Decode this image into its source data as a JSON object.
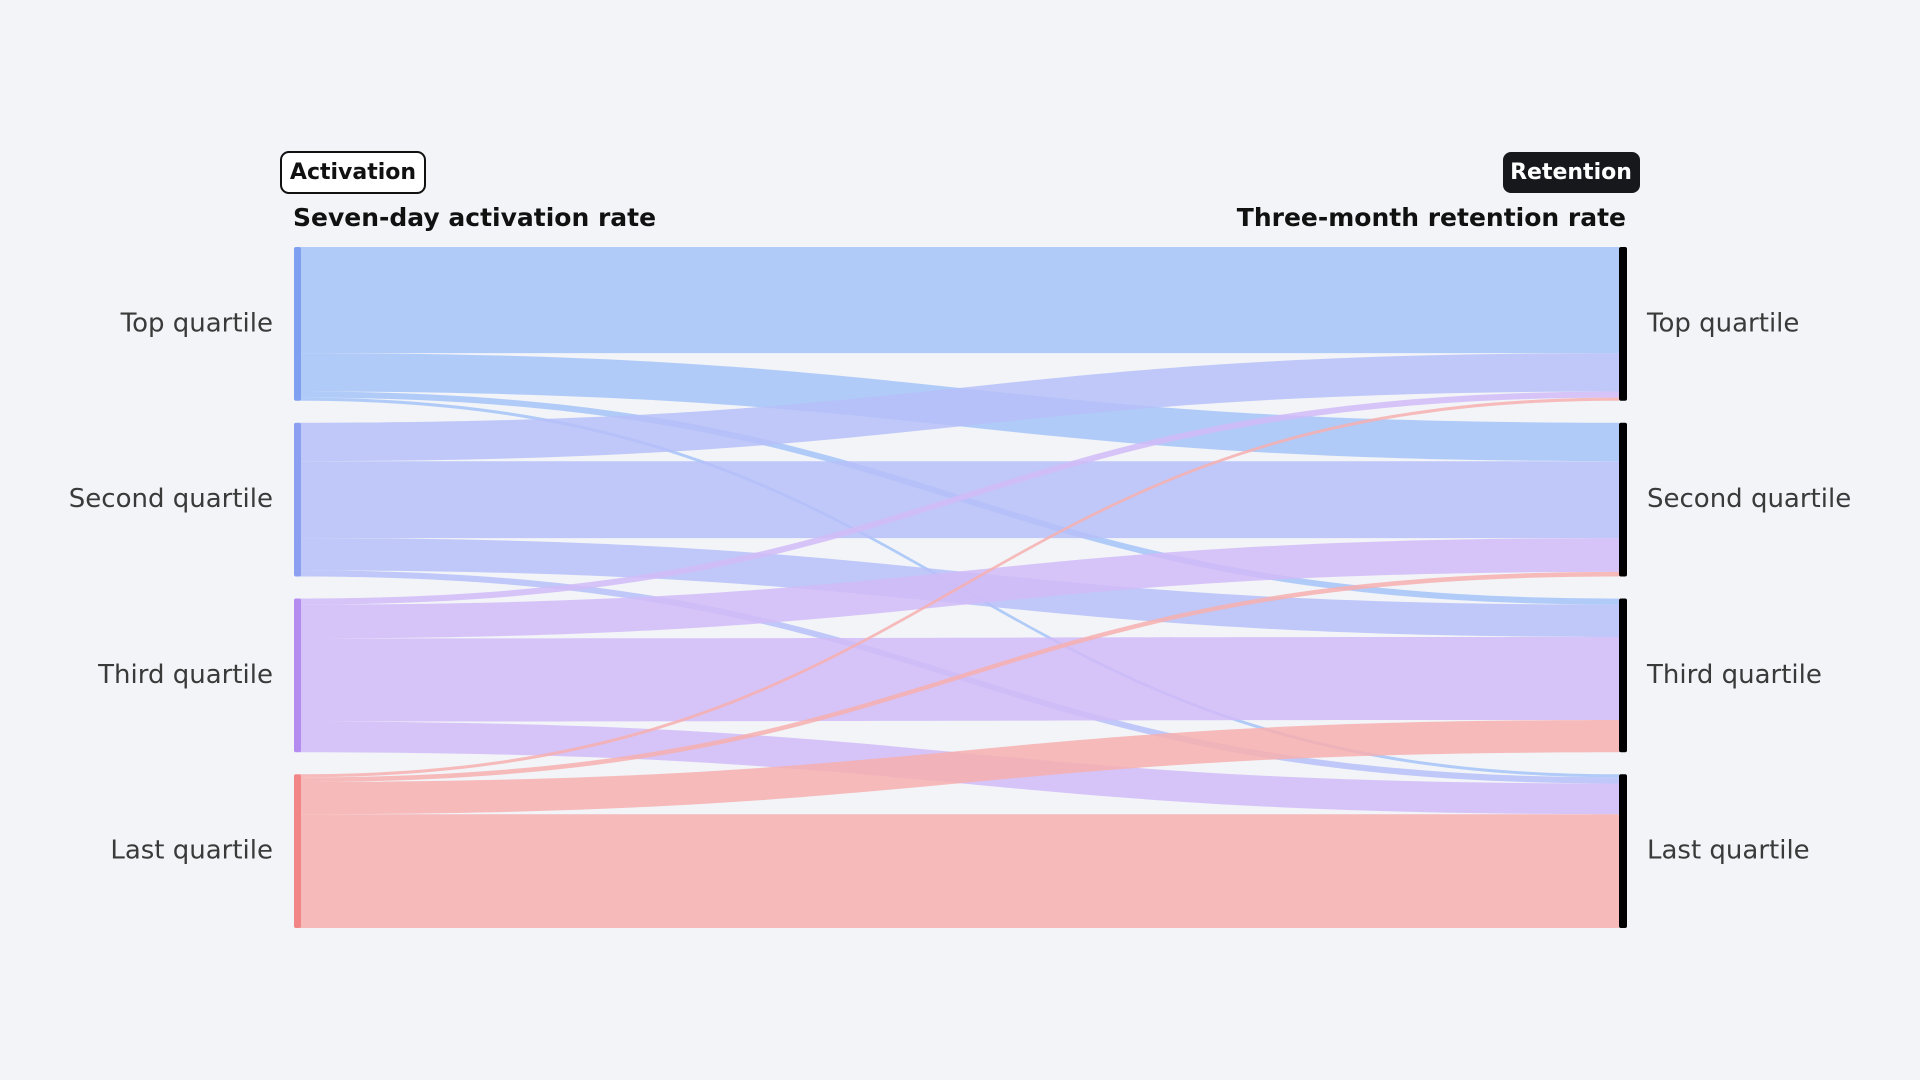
{
  "badges": {
    "left": "Activation",
    "right": "Retention"
  },
  "chart_data": {
    "type": "sankey",
    "left_title": "Seven-day activation rate",
    "right_title": "Three-month retention rate",
    "nodes": [
      "Top quartile",
      "Second quartile",
      "Third quartile",
      "Last quartile"
    ],
    "node_colors": [
      "#7f9ff0",
      "#8c9ff0",
      "#b48cf0",
      "#f28585"
    ],
    "link_colors": [
      "#a6c3f8",
      "#b6c0f8",
      "#d1bbf8",
      "#f7afaf"
    ],
    "right_node_color": "#000000",
    "flows": [
      {
        "source": 0,
        "target": 0,
        "value": 69
      },
      {
        "source": 0,
        "target": 1,
        "value": 25
      },
      {
        "source": 0,
        "target": 2,
        "value": 4
      },
      {
        "source": 0,
        "target": 3,
        "value": 2
      },
      {
        "source": 1,
        "target": 0,
        "value": 25
      },
      {
        "source": 1,
        "target": 1,
        "value": 50
      },
      {
        "source": 1,
        "target": 2,
        "value": 21
      },
      {
        "source": 1,
        "target": 3,
        "value": 4
      },
      {
        "source": 2,
        "target": 0,
        "value": 4
      },
      {
        "source": 2,
        "target": 1,
        "value": 22
      },
      {
        "source": 2,
        "target": 2,
        "value": 54
      },
      {
        "source": 2,
        "target": 3,
        "value": 20
      },
      {
        "source": 3,
        "target": 0,
        "value": 2
      },
      {
        "source": 3,
        "target": 1,
        "value": 3
      },
      {
        "source": 3,
        "target": 2,
        "value": 21
      },
      {
        "source": 3,
        "target": 3,
        "value": 74
      }
    ]
  }
}
